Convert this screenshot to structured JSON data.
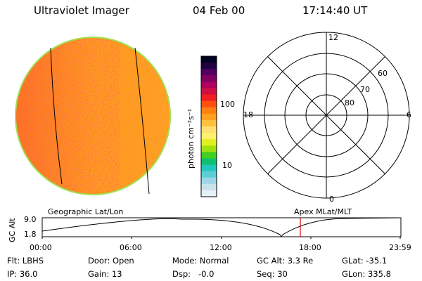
{
  "header": {
    "instrument": "Ultraviolet Imager",
    "date": "04 Feb 00",
    "time": "17:14:40 UT"
  },
  "colorbar": {
    "unit": "photon cm⁻²s⁻¹",
    "ticks": [
      "100",
      "10"
    ],
    "colors": [
      "#e6f0f5",
      "#c8e2ec",
      "#9ed6e6",
      "#5ccfd6",
      "#20c8c0",
      "#10c070",
      "#40d020",
      "#a0e010",
      "#e0f020",
      "#fff070",
      "#ffe070",
      "#ffc040",
      "#ffa020",
      "#ff8010",
      "#ff5010",
      "#f02020",
      "#d01040",
      "#b00060",
      "#800060",
      "#500060",
      "#200040",
      "#000020"
    ]
  },
  "polar_plot": {
    "lat_labels": [
      "80",
      "70",
      "60"
    ],
    "mlt_labels": {
      "top": "12",
      "bottom": "0",
      "left": "18",
      "right": "6"
    }
  },
  "timeline": {
    "left_label": "Geographic Lat/Lon",
    "right_label": "Apex MLat/MLT",
    "y_axis_title": "GC Alt",
    "y_ticks": [
      "9.0",
      "1.8"
    ],
    "x_ticks": [
      "00:00",
      "06:00",
      "12:00",
      "18:00",
      "23:59"
    ],
    "marker_color": "#e00000",
    "marker_time": "17:14:40"
  },
  "info": {
    "flt": "Flt: LBHS",
    "ip": "IP: 36.0",
    "door": "Door: Open",
    "gain": "Gain: 13",
    "mode": "Mode: Normal",
    "dsp": "Dsp:   -0.0",
    "gcalt": "GC Alt: 3.3 Re",
    "seq": "Seq: 30",
    "glat": "GLat: -35.1",
    "glon": "GLon: 335.8"
  }
}
